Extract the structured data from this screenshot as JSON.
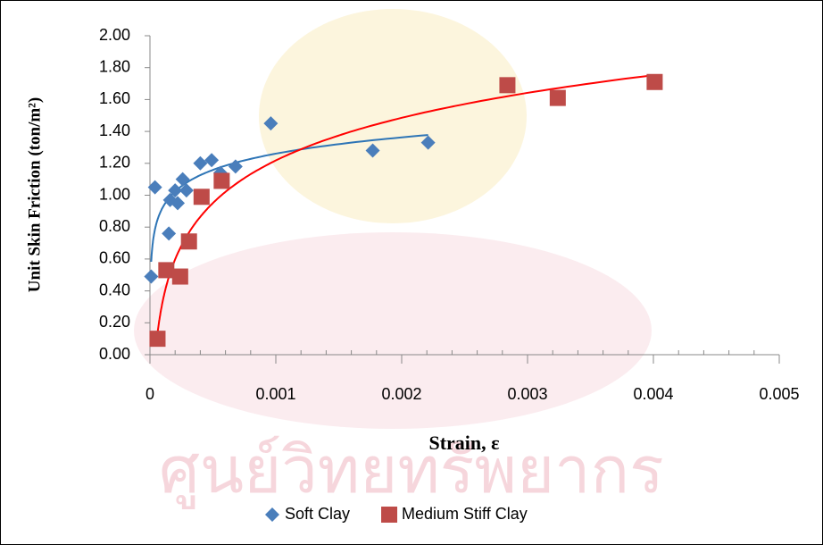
{
  "chart_data": {
    "type": "scatter",
    "y_label": "Unit Skin Friction (ton/m²)",
    "x_label": "Strain, ε",
    "watermark": "ศูนย์วิทยทรัพยากร",
    "xlim": [
      0,
      0.005
    ],
    "xticks": [
      0,
      0.001,
      0.002,
      0.003,
      0.004,
      0.005
    ],
    "ylim": [
      0,
      2
    ],
    "yticks": [
      {
        "value": 0,
        "label": "0.00"
      },
      {
        "value": 0.2,
        "label": "0.20"
      },
      {
        "value": 0.4,
        "label": "0.40"
      },
      {
        "value": 0.6,
        "label": "0.60"
      },
      {
        "value": 0.8,
        "label": "0.80"
      },
      {
        "value": 1,
        "label": "1.00"
      },
      {
        "value": 1.2,
        "label": "1.20"
      },
      {
        "value": 1.4,
        "label": "1.40"
      },
      {
        "value": 1.6,
        "label": "1.60"
      },
      {
        "value": 1.8,
        "label": "1.80"
      },
      {
        "value": 2,
        "label": "2.00"
      }
    ],
    "trendline": "logarithmic",
    "legend": "bottom",
    "series": [
      {
        "name": "Soft Clay",
        "color": "#4a7ebb",
        "marker": "diamond",
        "trend_color": "#2e75b6",
        "x": [
          1e-05,
          4e-05,
          0.00015,
          0.00016,
          0.0002,
          0.00022,
          0.00026,
          0.00029,
          0.0004,
          0.00049,
          0.00056,
          0.00068,
          0.00096,
          0.00177,
          0.00221
        ],
        "values": [
          0.49,
          1.05,
          0.76,
          0.97,
          1.03,
          0.95,
          1.1,
          1.03,
          1.2,
          1.22,
          1.14,
          1.18,
          1.45,
          1.28,
          1.33
        ]
      },
      {
        "name": "Medium Stiff Clay",
        "color": "#be4b48",
        "marker": "square",
        "trend_color": "#ff0000",
        "x": [
          6e-05,
          0.00013,
          0.00024,
          0.00031,
          0.00041,
          0.00057,
          0.00284,
          0.00324,
          0.00401
        ],
        "values": [
          0.1,
          0.53,
          0.49,
          0.71,
          0.99,
          1.09,
          1.69,
          1.61,
          1.71
        ]
      }
    ]
  }
}
